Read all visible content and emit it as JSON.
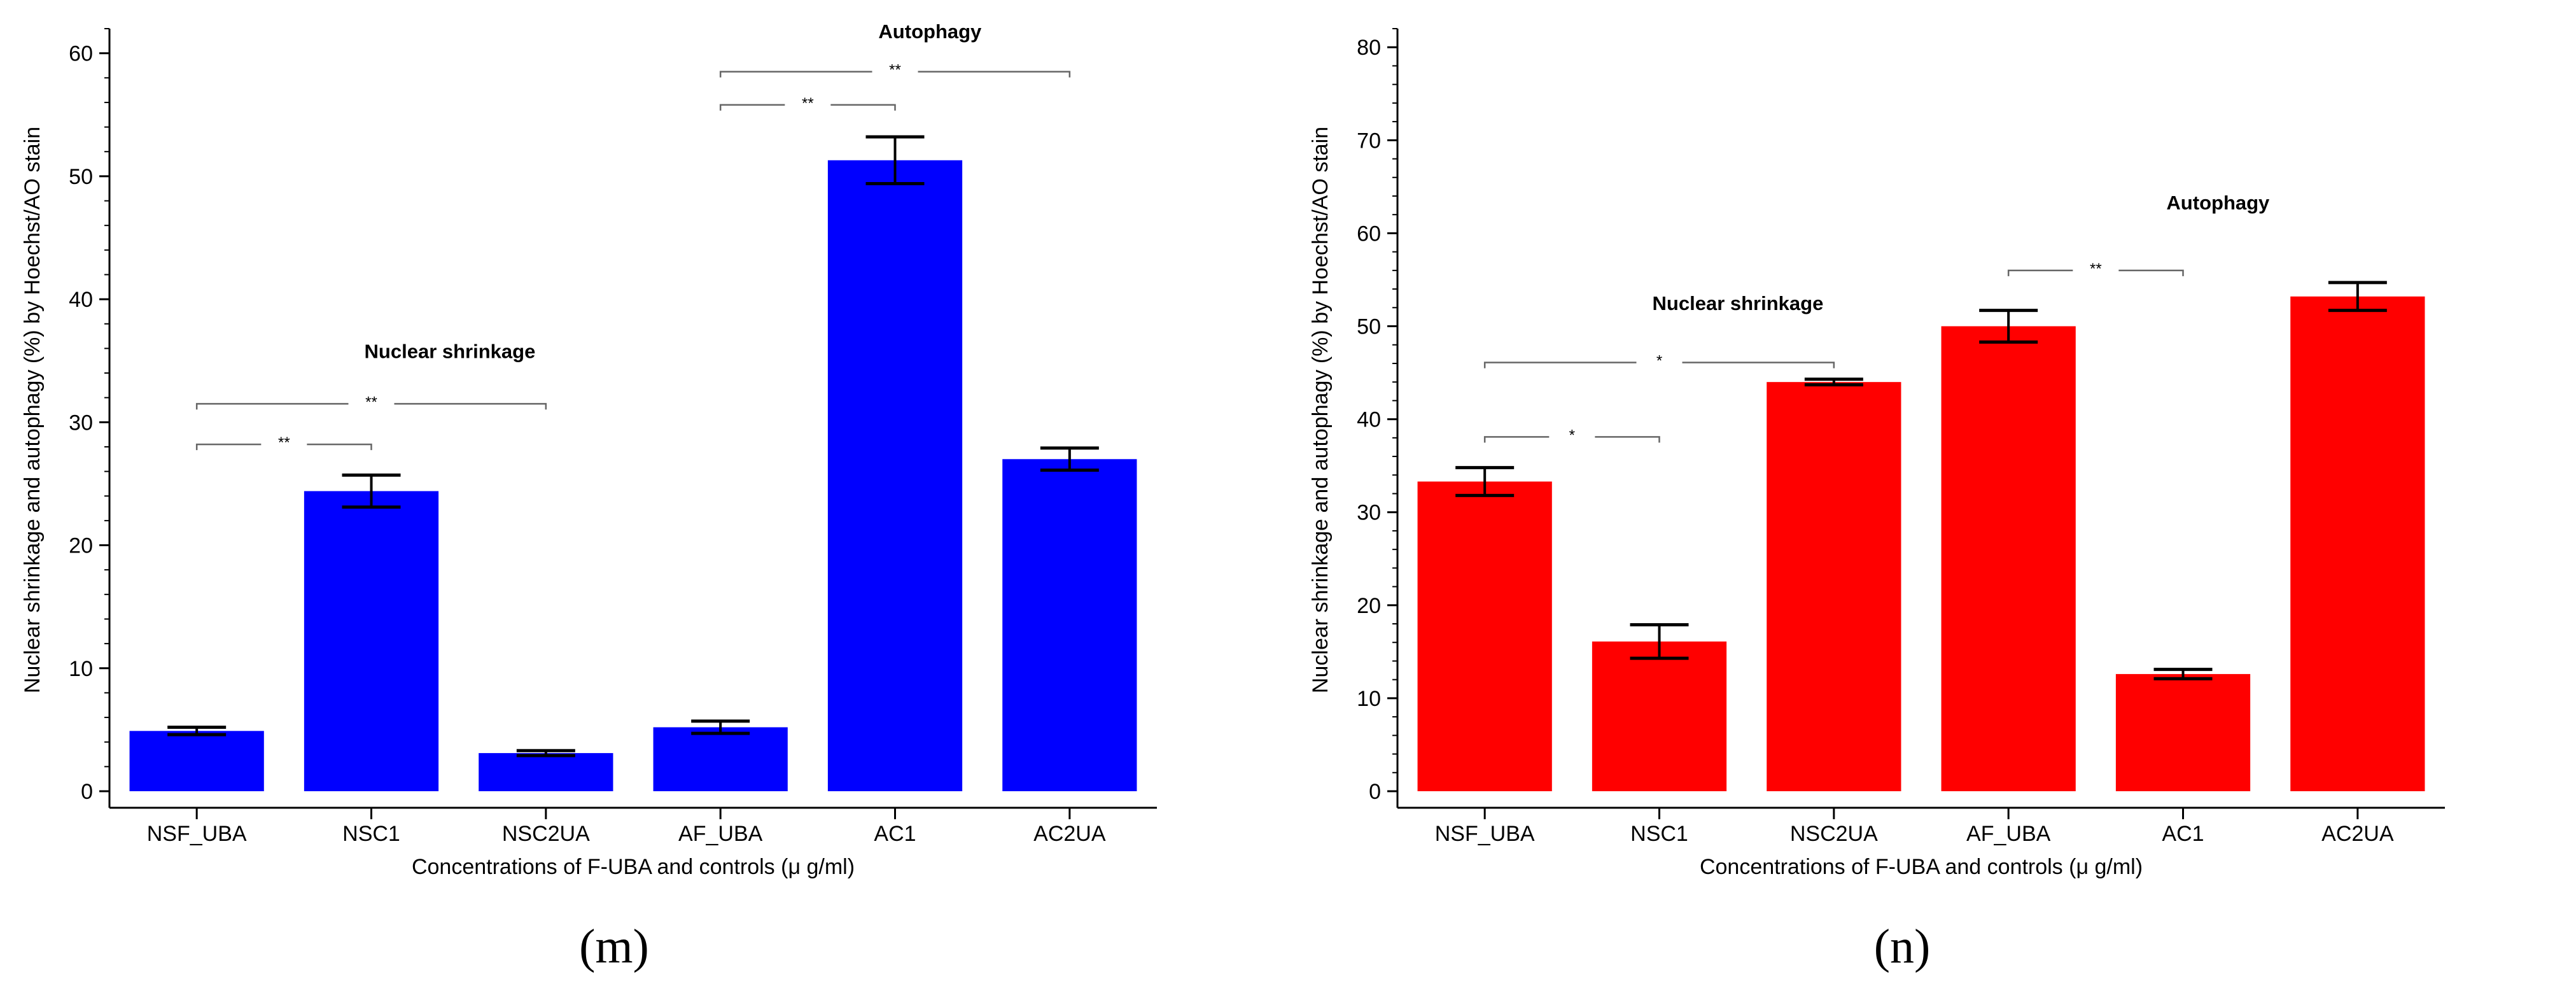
{
  "chart_data": [
    {
      "type": "bar",
      "panel_label": "(m)",
      "categories": [
        "NSF_UBA",
        "NSC1",
        "NSC2UA",
        "AF_UBA",
        "AC1",
        "AC2UA"
      ],
      "values": [
        4.9,
        24.4,
        3.1,
        5.2,
        51.3,
        27.0
      ],
      "errors": [
        0.3,
        1.3,
        0.2,
        0.5,
        1.9,
        0.9
      ],
      "color": "#0000ff",
      "xlabel": "Concentrations of F-UBA and controls (μ g/ml)",
      "ylabel": "Nuclear shrinkage and autophagy (%) by Hoechst/AO stain",
      "ylim": [
        0,
        62
      ],
      "yticks": [
        0,
        10,
        20,
        30,
        40,
        50,
        60
      ],
      "annotations": [
        {
          "text": "Nuclear shrinkage",
          "x": 1.45,
          "y": 35.8
        },
        {
          "text": "Autophagy",
          "x": 4.2,
          "y": 61.8
        }
      ],
      "significance": [
        {
          "from": 0,
          "to": 1,
          "y": 28.2,
          "label": "**"
        },
        {
          "from": 0,
          "to": 2,
          "y": 31.5,
          "label": "**"
        },
        {
          "from": 3,
          "to": 4,
          "y": 55.8,
          "label": "**"
        },
        {
          "from": 3,
          "to": 5,
          "y": 58.5,
          "label": "**"
        }
      ]
    },
    {
      "type": "bar",
      "panel_label": "(n)",
      "categories": [
        "NSF_UBA",
        "NSC1",
        "NSC2UA",
        "AF_UBA",
        "AC1",
        "AC2UA"
      ],
      "values": [
        33.3,
        16.1,
        44.0,
        50.0,
        12.6,
        53.2
      ],
      "errors": [
        1.5,
        1.8,
        0.3,
        1.7,
        0.5,
        1.5
      ],
      "color": "#ff0000",
      "xlabel": "Concentrations of F-UBA and controls (μ g/ml)",
      "ylabel": "Nuclear shrinkage and autophagy (%) by Hoechst/AO stain",
      "ylim": [
        0,
        82
      ],
      "yticks": [
        0,
        10,
        20,
        30,
        40,
        50,
        60,
        70,
        80
      ],
      "annotations": [
        {
          "text": "Nuclear shrinkage",
          "x": 1.45,
          "y": 52.5
        },
        {
          "text": "Autophagy",
          "x": 4.2,
          "y": 63.3
        }
      ],
      "significance": [
        {
          "from": 0,
          "to": 1,
          "y": 38.1,
          "label": "*"
        },
        {
          "from": 0,
          "to": 2,
          "y": 46.1,
          "label": "*"
        },
        {
          "from": 3,
          "to": 4,
          "y": 56.0,
          "label": "**"
        }
      ]
    }
  ]
}
